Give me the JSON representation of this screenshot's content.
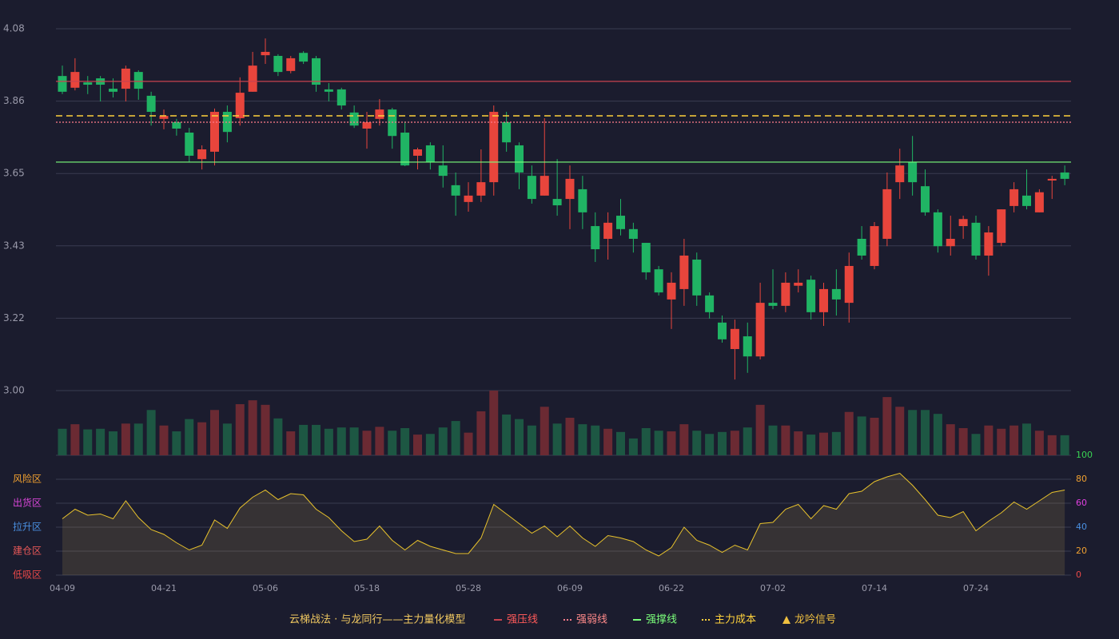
{
  "chart_data": {
    "type": "candlestick",
    "categories": [
      "04-09",
      null,
      null,
      null,
      null,
      null,
      null,
      null,
      "04-21",
      null,
      null,
      null,
      null,
      null,
      null,
      null,
      "05-06",
      null,
      null,
      null,
      null,
      null,
      null,
      null,
      "05-18",
      null,
      null,
      null,
      null,
      null,
      null,
      null,
      "05-28",
      null,
      null,
      null,
      null,
      null,
      null,
      null,
      "06-09",
      null,
      null,
      null,
      null,
      null,
      null,
      null,
      "06-22",
      null,
      null,
      null,
      null,
      null,
      null,
      null,
      "07-02",
      null,
      null,
      null,
      null,
      null,
      null,
      null,
      "07-14",
      null,
      null,
      null,
      null,
      null,
      null,
      null,
      "07-24",
      null,
      null,
      null,
      null,
      null,
      null,
      null
    ],
    "open": [
      3.939,
      3.904,
      3.92,
      3.932,
      3.901,
      3.901,
      3.951,
      3.88,
      3.811,
      3.801,
      3.77,
      3.691,
      3.713,
      3.832,
      3.813,
      3.892,
      4.001,
      3.999,
      3.954,
      4.008,
      3.992,
      3.899,
      3.899,
      3.83,
      3.782,
      3.811,
      3.839,
      3.77,
      3.701,
      3.732,
      3.672,
      3.613,
      3.563,
      3.582,
      3.622,
      3.801,
      3.732,
      3.641,
      3.582,
      3.572,
      3.572,
      3.601,
      3.491,
      3.453,
      3.522,
      3.482,
      3.441,
      3.362,
      3.272,
      3.303,
      3.391,
      3.284,
      3.203,
      3.124,
      3.162,
      3.102,
      3.262,
      3.253,
      3.313,
      3.331,
      3.234,
      3.303,
      3.262,
      3.453,
      3.372,
      3.453,
      3.622,
      3.682,
      3.61,
      3.532,
      3.431,
      3.491,
      3.501,
      3.403,
      3.441,
      3.551,
      3.582,
      3.532,
      3.627,
      3.651
    ],
    "high": [
      3.97,
      3.992,
      3.939,
      3.939,
      3.932,
      3.97,
      3.956,
      3.892,
      3.839,
      3.811,
      3.784,
      3.732,
      3.842,
      3.851,
      3.935,
      4.011,
      4.051,
      4.004,
      3.999,
      4.013,
      3.999,
      3.918,
      3.904,
      3.851,
      3.832,
      3.87,
      3.844,
      3.803,
      3.725,
      3.741,
      3.732,
      3.651,
      3.622,
      3.72,
      3.851,
      3.832,
      3.741,
      3.672,
      3.813,
      3.691,
      3.672,
      3.641,
      3.532,
      3.532,
      3.572,
      3.501,
      3.441,
      3.372,
      3.353,
      3.453,
      3.412,
      3.293,
      3.224,
      3.212,
      3.203,
      3.322,
      3.362,
      3.353,
      3.362,
      3.343,
      3.322,
      3.362,
      3.412,
      3.491,
      3.503,
      3.651,
      3.722,
      3.76,
      3.66,
      3.541,
      3.522,
      3.522,
      3.522,
      3.491,
      3.541,
      3.622,
      3.66,
      3.601,
      3.641,
      3.672
    ],
    "low": [
      3.885,
      3.896,
      3.885,
      3.863,
      3.875,
      3.863,
      3.868,
      3.791,
      3.78,
      3.761,
      3.682,
      3.66,
      3.672,
      3.741,
      3.791,
      3.892,
      3.975,
      3.939,
      3.947,
      3.975,
      3.892,
      3.863,
      3.839,
      3.784,
      3.722,
      3.791,
      3.722,
      3.67,
      3.66,
      3.66,
      3.606,
      3.522,
      3.534,
      3.563,
      3.582,
      3.713,
      3.601,
      3.558,
      3.582,
      3.522,
      3.482,
      3.482,
      3.384,
      3.391,
      3.463,
      3.412,
      3.331,
      3.284,
      3.184,
      3.253,
      3.253,
      3.215,
      3.143,
      3.033,
      3.053,
      3.093,
      3.243,
      3.234,
      3.293,
      3.212,
      3.193,
      3.224,
      3.203,
      3.391,
      3.362,
      3.431,
      3.572,
      3.582,
      3.522,
      3.412,
      3.403,
      3.453,
      3.391,
      3.343,
      3.431,
      3.532,
      3.541,
      3.532,
      3.572,
      3.613
    ],
    "close": [
      3.892,
      3.951,
      3.913,
      3.913,
      3.892,
      3.961,
      3.901,
      3.832,
      3.82,
      3.782,
      3.701,
      3.72,
      3.832,
      3.772,
      3.889,
      3.97,
      4.011,
      3.951,
      3.992,
      3.982,
      3.913,
      3.892,
      3.851,
      3.791,
      3.801,
      3.839,
      3.76,
      3.672,
      3.72,
      3.682,
      3.641,
      3.582,
      3.582,
      3.622,
      3.832,
      3.741,
      3.651,
      3.572,
      3.641,
      3.553,
      3.632,
      3.532,
      3.422,
      3.501,
      3.482,
      3.453,
      3.353,
      3.293,
      3.322,
      3.403,
      3.284,
      3.234,
      3.153,
      3.184,
      3.102,
      3.262,
      3.253,
      3.322,
      3.322,
      3.234,
      3.303,
      3.272,
      3.372,
      3.403,
      3.491,
      3.601,
      3.672,
      3.622,
      3.532,
      3.431,
      3.453,
      3.512,
      3.403,
      3.472,
      3.541,
      3.601,
      3.551,
      3.592,
      3.632,
      3.632
    ],
    "up_color": "#e8453c",
    "down_color": "#20b464",
    "ylim": [
      3,
      4.08
    ],
    "yticks": [
      {
        "value": 3,
        "label": "3.00"
      },
      {
        "value": 3.216,
        "label": "3.22"
      },
      {
        "value": 3.432,
        "label": "3.43"
      },
      {
        "value": 3.648,
        "label": "3.65"
      },
      {
        "value": 3.864,
        "label": "3.86"
      },
      4.08
    ],
    "grid": true,
    "lines": [
      {
        "name": "强压线",
        "value": 3.923,
        "color": "#c8424e",
        "label_color": "#ff5a5a",
        "style": "solid"
      },
      {
        "name": "强弱线",
        "value": 3.801,
        "color": "#ff7b8a",
        "label_color": "#ff8a8a",
        "style": "dotted"
      },
      {
        "name": "强撑线",
        "value": 3.682,
        "color": "#7bff7b",
        "label_color": "#7bff7b",
        "style": "solid"
      },
      {
        "name": "主力成本",
        "value": 3.82,
        "color": "#ffd23c",
        "label_color": "#ffd23c",
        "style": "dashed"
      }
    ],
    "signal": {
      "name": "龙吟信号",
      "color": "#f0c040"
    },
    "legend_title": "云梯战法 · 与龙同行——主力量化模型",
    "volume": {
      "type": "bar",
      "values": [
        41,
        48,
        40,
        41,
        37,
        49,
        49,
        70,
        46,
        37,
        56,
        51,
        70,
        49,
        79,
        85,
        78,
        57,
        37,
        47,
        47,
        41,
        43,
        43,
        38,
        44,
        38,
        42,
        32,
        33,
        43,
        53,
        35,
        68,
        100,
        63,
        56,
        46,
        75,
        49,
        58,
        48,
        46,
        41,
        36,
        26,
        42,
        38,
        37,
        48,
        38,
        33,
        36,
        38,
        43,
        78,
        46,
        46,
        37,
        32,
        35,
        36,
        67,
        60,
        58,
        90,
        75,
        70,
        70,
        64,
        48,
        42,
        33,
        46,
        41,
        46,
        49,
        38,
        31,
        31
      ],
      "ylim": [
        0,
        100
      ],
      "up_color": "#6b2a33",
      "down_color": "#1d5743"
    },
    "oscillator": {
      "type": "area",
      "values": [
        47,
        55,
        50,
        51,
        47,
        62,
        48,
        38,
        34,
        27,
        21,
        25,
        46,
        39,
        56,
        65,
        71,
        63,
        68,
        67,
        55,
        48,
        37,
        28,
        30,
        41,
        29,
        21,
        29,
        24,
        21,
        18,
        18,
        31,
        59,
        51,
        43,
        35,
        41,
        32,
        41,
        31,
        24,
        33,
        31,
        28,
        21,
        16,
        23,
        40,
        29,
        25,
        19,
        25,
        21,
        43,
        44,
        55,
        59,
        47,
        58,
        55,
        68,
        70,
        78,
        82,
        85,
        75,
        63,
        50,
        48,
        53,
        37,
        45,
        52,
        61,
        55,
        62,
        69,
        71
      ],
      "color": "#e8c22c",
      "fill": "rgba(200,170,90,0.16)",
      "ylim": [
        0,
        100
      ],
      "yticks": [
        0,
        20,
        40,
        60,
        80,
        100
      ],
      "ytick_colors": [
        "#e84848",
        "#f0a030",
        "#4a90e2",
        "#e040e0",
        "#f0a030",
        "#39d353"
      ],
      "zones": [
        {
          "value": 80,
          "label": "风险区"
        },
        {
          "value": 60,
          "label": "出货区"
        },
        {
          "value": 40,
          "label": "拉升区"
        },
        {
          "value": 20,
          "label": "建仓区"
        },
        {
          "value": 0,
          "label": "低吸区"
        }
      ],
      "zone_colors": [
        "#f0a030",
        "#d846d8",
        "#4a90e2",
        "#e85858",
        "#e84848"
      ]
    }
  }
}
